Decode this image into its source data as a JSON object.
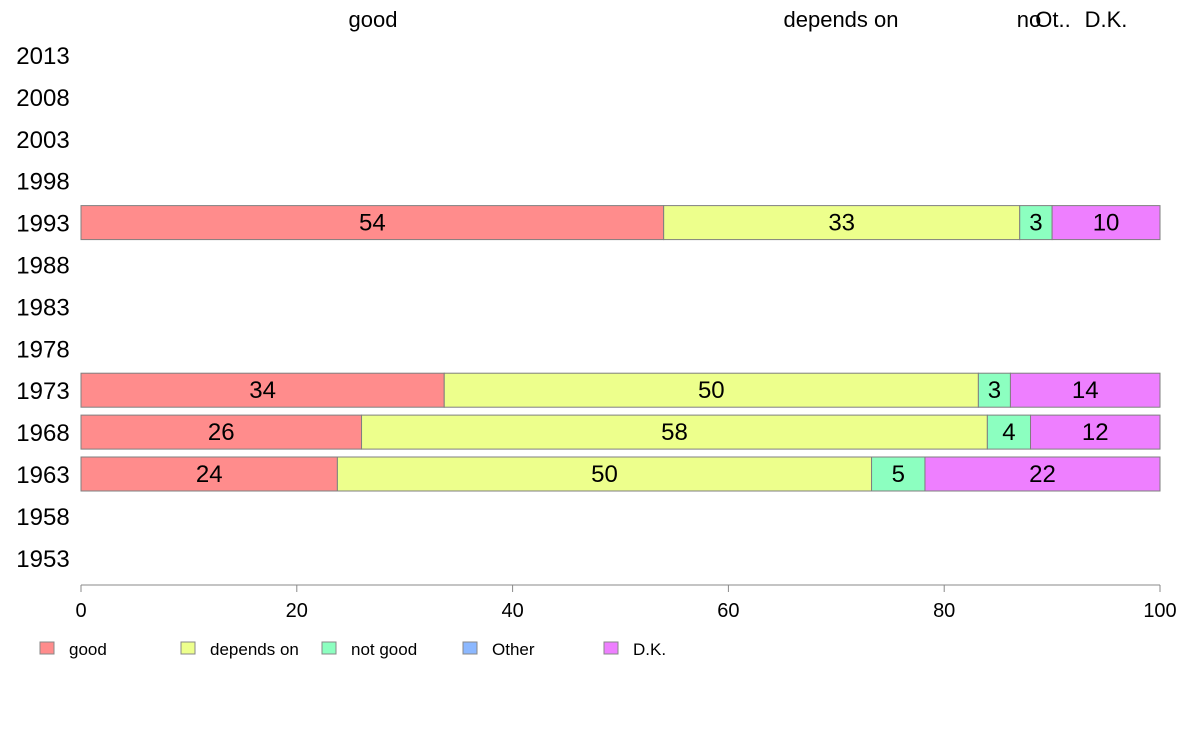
{
  "chart_data": {
    "type": "bar",
    "orientation": "horizontal",
    "stacked": true,
    "categories": [
      "2013",
      "2008",
      "2003",
      "1998",
      "1993",
      "1988",
      "1983",
      "1978",
      "1973",
      "1968",
      "1963",
      "1958",
      "1953"
    ],
    "series": [
      {
        "name": "good",
        "color": "#FF8C8C",
        "values": [
          null,
          null,
          null,
          null,
          54,
          null,
          null,
          null,
          34,
          26,
          24,
          null,
          null
        ]
      },
      {
        "name": "depends on",
        "color": "#EDFF8C",
        "values": [
          null,
          null,
          null,
          null,
          33,
          null,
          null,
          null,
          50,
          58,
          50,
          null,
          null
        ]
      },
      {
        "name": "not good",
        "color": "#8CFFC0",
        "values": [
          null,
          null,
          null,
          null,
          3,
          null,
          null,
          null,
          3,
          4,
          5,
          null,
          null
        ]
      },
      {
        "name": "Other",
        "color": "#8CB8FF",
        "values": [
          null,
          null,
          null,
          null,
          0,
          null,
          null,
          null,
          0,
          0,
          0,
          null,
          null
        ]
      },
      {
        "name": "D.K.",
        "color": "#EE7FFF",
        "values": [
          null,
          null,
          null,
          null,
          10,
          null,
          null,
          null,
          14,
          12,
          22,
          null,
          null
        ]
      }
    ],
    "top_labels": [
      "good",
      "depends on",
      "no",
      "Ot..",
      "D.K."
    ],
    "xlim": [
      0,
      100
    ],
    "xticks": [
      0,
      20,
      40,
      60,
      80,
      100
    ],
    "legend_position": "bottom-left",
    "grid": false
  }
}
